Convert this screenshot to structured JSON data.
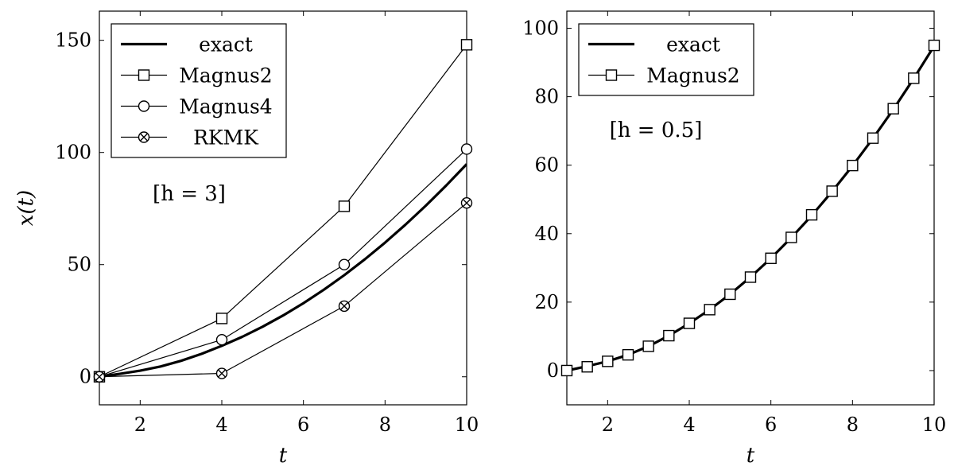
{
  "chart_data": [
    {
      "type": "line",
      "xlabel": "t",
      "ylabel": "x(t)",
      "xlim": [
        1,
        10
      ],
      "ylim": [
        -12.5,
        163
      ],
      "xticks": [
        2,
        4,
        6,
        8,
        10
      ],
      "yticks": [
        0,
        50,
        100,
        150
      ],
      "grid": false,
      "legend_position": "top-left",
      "annotation": "[h = 3]",
      "series": [
        {
          "name": "exact",
          "marker": "none",
          "line": "thick",
          "x": [
            1,
            1.5,
            2,
            2.5,
            3,
            3.5,
            4,
            4.5,
            5,
            5.5,
            6,
            6.5,
            7,
            7.5,
            8,
            8.5,
            9,
            9.5,
            10
          ],
          "y": [
            0,
            1.3,
            2.7,
            4.6,
            7.1,
            10.2,
            13.8,
            17.8,
            22.3,
            27.3,
            32.8,
            38.8,
            45.3,
            52.3,
            59.8,
            67.8,
            76.3,
            85.3,
            94.8
          ]
        },
        {
          "name": "Magnus2",
          "marker": "square",
          "line": "thin",
          "x": [
            1,
            4,
            7,
            10
          ],
          "y": [
            0,
            26,
            76,
            148
          ]
        },
        {
          "name": "Magnus4",
          "marker": "circle",
          "line": "thin",
          "x": [
            1,
            4,
            7,
            10
          ],
          "y": [
            0,
            16.5,
            50,
            101.5
          ]
        },
        {
          "name": "RKMK",
          "marker": "otimes",
          "line": "thin",
          "x": [
            1,
            4,
            7,
            10
          ],
          "y": [
            0,
            1.5,
            31.5,
            77.5
          ]
        }
      ]
    },
    {
      "type": "line",
      "xlabel": "t",
      "ylabel": "",
      "xlim": [
        1,
        10
      ],
      "ylim": [
        -10,
        105
      ],
      "xticks": [
        2,
        4,
        6,
        8,
        10
      ],
      "yticks": [
        0,
        20,
        40,
        60,
        80,
        100
      ],
      "grid": false,
      "legend_position": "top-left",
      "annotation": "[h = 0.5]",
      "series": [
        {
          "name": "exact",
          "marker": "none",
          "line": "thick",
          "x": [
            1,
            1.5,
            2,
            2.5,
            3,
            3.5,
            4,
            4.5,
            5,
            5.5,
            6,
            6.5,
            7,
            7.5,
            8,
            8.5,
            9,
            9.5,
            10
          ],
          "y": [
            0,
            1.3,
            2.7,
            4.6,
            7.1,
            10.2,
            13.8,
            17.8,
            22.3,
            27.3,
            32.8,
            38.8,
            45.3,
            52.3,
            59.8,
            67.8,
            76.3,
            85.3,
            94.8
          ]
        },
        {
          "name": "Magnus2",
          "marker": "square",
          "line": "thin",
          "x": [
            1,
            1.5,
            2,
            2.5,
            3,
            3.5,
            4,
            4.5,
            5,
            5.5,
            6,
            6.5,
            7,
            7.5,
            8,
            8.5,
            9,
            9.5,
            10
          ],
          "y": [
            0,
            1.1,
            2.7,
            4.6,
            7.1,
            10.2,
            13.8,
            17.8,
            22.3,
            27.3,
            32.8,
            38.9,
            45.5,
            52.4,
            59.9,
            67.9,
            76.5,
            85.4,
            95.0
          ]
        }
      ]
    }
  ]
}
